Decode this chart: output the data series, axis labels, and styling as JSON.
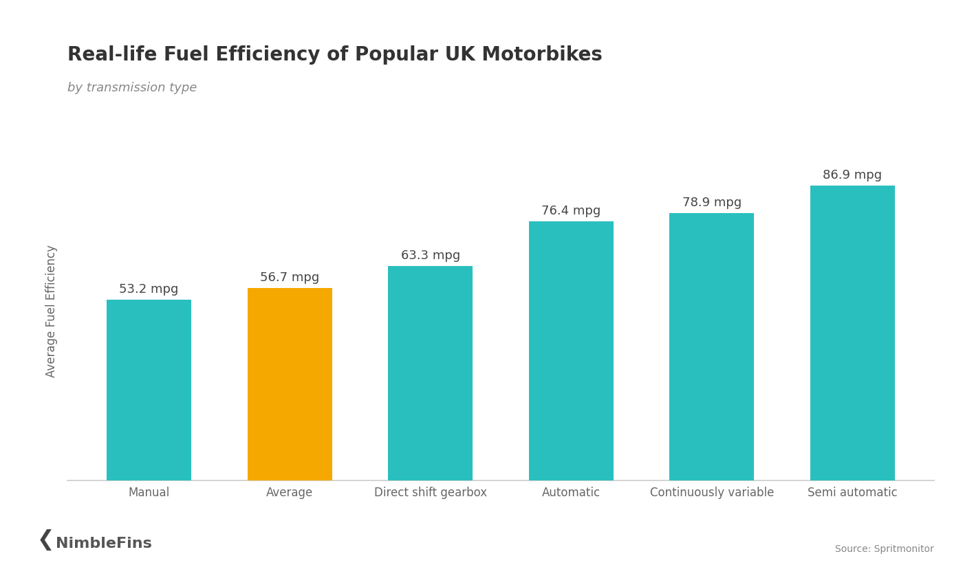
{
  "title": "Real-life Fuel Efficiency of Popular UK Motorbikes",
  "subtitle": "by transmission type",
  "ylabel": "Average Fuel Efficiency",
  "source": "Source: Spritmonitor",
  "categories": [
    "Manual",
    "Average",
    "Direct shift gearbox",
    "Automatic",
    "Continuously variable",
    "Semi automatic"
  ],
  "values": [
    53.2,
    56.7,
    63.3,
    76.4,
    78.9,
    86.9
  ],
  "bar_colors": [
    "#2ABFBF",
    "#F5A800",
    "#2ABFBF",
    "#2ABFBF",
    "#2ABFBF",
    "#2ABFBF"
  ],
  "label_template": "{} mpg",
  "ylim": [
    0,
    100
  ],
  "background_color": "#ffffff",
  "title_fontsize": 20,
  "subtitle_fontsize": 13,
  "label_fontsize": 13,
  "tick_fontsize": 12,
  "ylabel_fontsize": 12,
  "bar_width": 0.6,
  "title_color": "#333333",
  "subtitle_color": "#888888",
  "label_color": "#444444",
  "tick_color": "#666666",
  "source_color": "#888888",
  "nimblefins_color": "#555555",
  "spine_color": "#cccccc"
}
